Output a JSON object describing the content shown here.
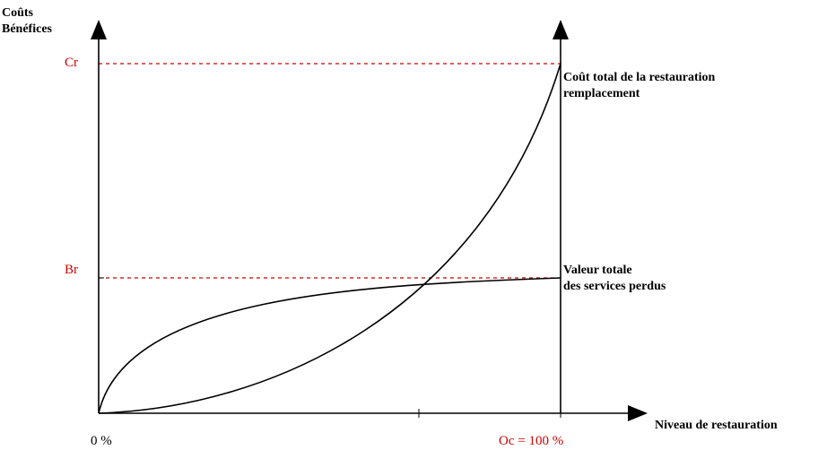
{
  "y_axis_label": [
    "Coûts",
    "Bénéfices"
  ],
  "x_axis_label": "Niveau de restauration",
  "ticks": {
    "cr": "Cr",
    "br": "Br",
    "x_start": "0 %",
    "x_end": "Oc = 100 %"
  },
  "curves": {
    "cost": [
      "Coût total de la restauration",
      "remplacement"
    ],
    "benefit": [
      "Valeur totale",
      "des services perdus"
    ]
  },
  "colors": {
    "axis": "#000000",
    "reference_lines": "#cc0000",
    "tick_labels": "#cc0000"
  }
}
